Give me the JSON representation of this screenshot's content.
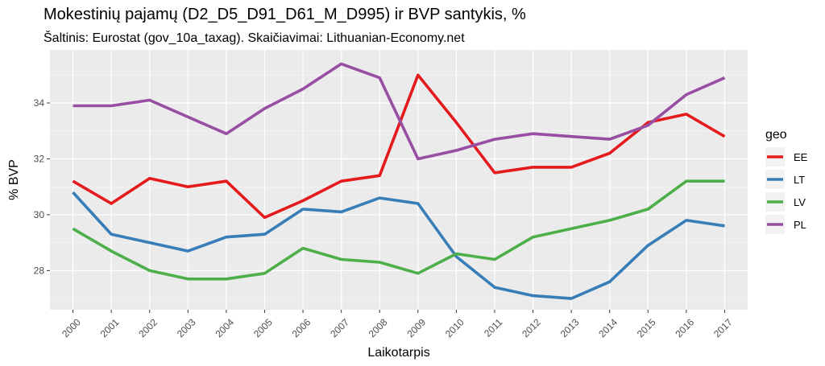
{
  "chart_data": {
    "type": "line",
    "title": "Mokestinių pajamų (D2_D5_D91_D61_M_D995) ir BVP santykis, %",
    "subtitle": "Šaltinis: Eurostat (gov_10a_taxag). Skaičiavimai: Lithuanian-Economy.net",
    "xlabel": "Laikotarpis",
    "ylabel": "% BVP",
    "legend_title": "geo",
    "legend_position": "right",
    "grid": true,
    "xlim": [
      1999.4,
      2017.6
    ],
    "ylim": [
      26.6,
      35.9
    ],
    "y_ticks": [
      28,
      30,
      32,
      34
    ],
    "x": [
      2000,
      2001,
      2002,
      2003,
      2004,
      2005,
      2006,
      2007,
      2008,
      2009,
      2010,
      2011,
      2012,
      2013,
      2014,
      2015,
      2016,
      2017
    ],
    "x_tick_labels": [
      "2000",
      "2001",
      "2002",
      "2003",
      "2004",
      "2005",
      "2006",
      "2007",
      "2008",
      "2009",
      "2010",
      "2011",
      "2012",
      "2013",
      "2014",
      "2015",
      "2016",
      "2017"
    ],
    "series": [
      {
        "name": "EE",
        "color": "#e41a1c",
        "values": [
          31.2,
          30.4,
          31.3,
          31.0,
          31.2,
          29.9,
          30.5,
          31.2,
          31.4,
          35.0,
          33.3,
          31.5,
          31.7,
          31.7,
          32.2,
          33.3,
          33.6,
          32.8
        ]
      },
      {
        "name": "LT",
        "color": "#377eb8",
        "values": [
          30.8,
          29.3,
          29.0,
          28.7,
          29.2,
          29.3,
          30.2,
          30.1,
          30.6,
          30.4,
          28.5,
          27.4,
          27.1,
          27.0,
          27.6,
          28.9,
          29.8,
          29.6
        ]
      },
      {
        "name": "LV",
        "color": "#4daf4a",
        "values": [
          29.5,
          28.7,
          28.0,
          27.7,
          27.7,
          27.9,
          28.8,
          28.4,
          28.3,
          27.9,
          28.6,
          28.4,
          29.2,
          29.5,
          29.8,
          30.2,
          31.2,
          31.2
        ]
      },
      {
        "name": "PL",
        "color": "#984ea3",
        "values": [
          33.9,
          33.9,
          34.1,
          33.5,
          32.9,
          33.8,
          34.5,
          35.4,
          34.9,
          32.0,
          32.3,
          32.7,
          32.9,
          32.8,
          32.7,
          33.2,
          34.3,
          34.9
        ]
      }
    ]
  }
}
